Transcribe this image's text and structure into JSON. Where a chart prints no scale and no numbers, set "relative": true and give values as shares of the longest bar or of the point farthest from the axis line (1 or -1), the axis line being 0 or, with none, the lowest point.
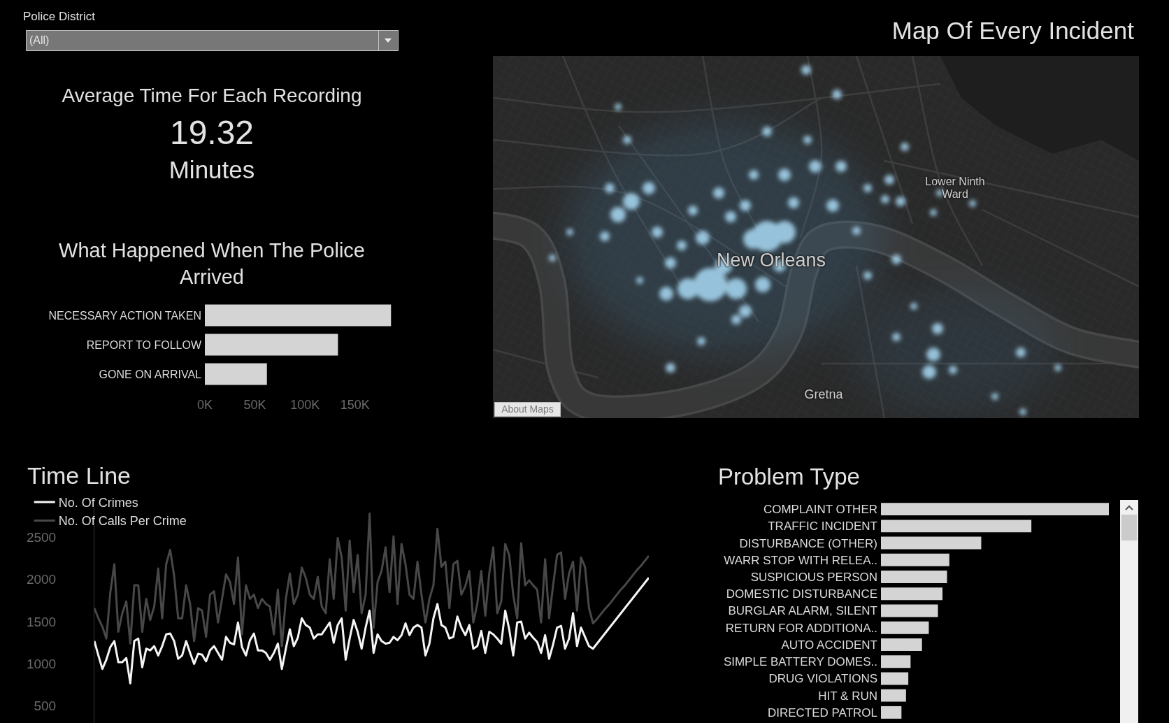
{
  "chart_data": [
    {
      "type": "other",
      "title": "Police District",
      "annotations": [
        "(All)"
      ]
    },
    {
      "type": "other",
      "title": "Average Time For Each Recording",
      "annotations": [
        "19.32",
        "Minutes"
      ]
    },
    {
      "type": "bar",
      "title": "What Happened When The Police Arrived",
      "orientation": "horizontal",
      "categories": [
        "NECESSARY ACTION TAKEN",
        "REPORT TO FOLLOW",
        "GONE ON ARRIVAL"
      ],
      "values": [
        186000,
        133000,
        62000
      ],
      "color": "#d4d4d4",
      "xlim": [
        0,
        190000
      ],
      "xticks": [
        {
          "value": 0,
          "label": "0K"
        },
        {
          "value": 50000,
          "label": "50K"
        },
        {
          "value": 100000,
          "label": "100K"
        },
        {
          "value": 150000,
          "label": "150K"
        }
      ]
    },
    {
      "type": "other",
      "title": "Map Of Every Incident",
      "annotations": [
        "New Orleans",
        "Lower Ninth Ward",
        "Gretna",
        "About Maps"
      ]
    },
    {
      "type": "line",
      "title": "Time Line",
      "categories": [
        null,
        null,
        null,
        null,
        null,
        null,
        null,
        null,
        null,
        null,
        null,
        null,
        null,
        null,
        null,
        null,
        null,
        null,
        null,
        null,
        null,
        null,
        null,
        null,
        null,
        null,
        null,
        null,
        null,
        null,
        null,
        null,
        null,
        null,
        null,
        null,
        null,
        null,
        null,
        null,
        null,
        null,
        null,
        null,
        null,
        null,
        null,
        null,
        null,
        null,
        null,
        null,
        null,
        null,
        null,
        null,
        null,
        null,
        null,
        null,
        null,
        null,
        null,
        null,
        null,
        null,
        null,
        null,
        null,
        null,
        null,
        null,
        null,
        null,
        null,
        null,
        null,
        null,
        null,
        null,
        null,
        null,
        null,
        null,
        null,
        null,
        null,
        null,
        null,
        null,
        null,
        null,
        null,
        null,
        null,
        null,
        null,
        null,
        null,
        null,
        null,
        null,
        null,
        null,
        null,
        null,
        null,
        null,
        null,
        null,
        null,
        null,
        null,
        null,
        null,
        null,
        null,
        null,
        null,
        null,
        null,
        null,
        null,
        null,
        null,
        null,
        null,
        null,
        null,
        null,
        null,
        null,
        null,
        null,
        null,
        null,
        null,
        null,
        null,
        null
      ],
      "series": [
        {
          "name": "No. Of Crimes",
          "color": "#f5f5f5",
          "values": [
            1270,
            1100,
            940,
            1050,
            1200,
            1270,
            1020,
            1020,
            1070,
            770,
            1270,
            1300,
            960,
            1180,
            1160,
            1210,
            1100,
            1210,
            1350,
            1360,
            1270,
            1060,
            1100,
            1270,
            1130,
            1000,
            1120,
            1110,
            1030,
            1160,
            1210,
            1130,
            1050,
            1320,
            1250,
            1230,
            1490,
            1200,
            1100,
            1280,
            1360,
            1160,
            1160,
            1130,
            1050,
            1130,
            1240,
            940,
            1180,
            1410,
            1210,
            1310,
            1540,
            1460,
            1430,
            1300,
            1350,
            1350,
            1420,
            1490,
            1250,
            1460,
            1540,
            1050,
            1300,
            1520,
            1380,
            1180,
            1430,
            1630,
            1130,
            1350,
            1270,
            1240,
            1250,
            1320,
            1280,
            1340,
            1480,
            1340,
            1430,
            1460,
            1430,
            1100,
            1240,
            1540,
            1710,
            1460,
            1430,
            1300,
            1320,
            1560,
            1430,
            1340,
            1460,
            1180,
            1210,
            1390,
            1130,
            1380,
            1350,
            1300,
            1240,
            1630,
            1410,
            1100,
            1490,
            1500,
            1300,
            1370,
            1310,
            1260,
            1130,
            1340,
            1060,
            1230,
            1430,
            1450,
            1180,
            1300,
            1600,
            1210,
            1430,
            1320,
            1210,
            1180,
            1240,
            1300,
            1360,
            1420,
            1480,
            1540,
            1600,
            1660,
            1720,
            1780,
            1840,
            1900,
            1960,
            2020
          ]
        },
        {
          "name": "No. Of Calls Per Crime",
          "color": "#484848",
          "values": [
            1660,
            1540,
            1440,
            1300,
            1850,
            2180,
            1380,
            1600,
            1740,
            1240,
            1930,
            1930,
            1380,
            1770,
            1520,
            1680,
            2130,
            1540,
            2180,
            2350,
            2040,
            1540,
            1540,
            1930,
            1710,
            1270,
            1660,
            1630,
            1320,
            1820,
            1860,
            1490,
            1770,
            2060,
            1970,
            1710,
            2260,
            1350,
            1930,
            1770,
            1820,
            1660,
            1770,
            1710,
            1680,
            1350,
            1880,
            1210,
            1770,
            2070,
            1710,
            1820,
            2140,
            2020,
            1820,
            1770,
            2030,
            1680,
            1600,
            2240,
            1770,
            2490,
            2260,
            1630,
            2460,
            1850,
            2290,
            1600,
            1820,
            2780,
            1430,
            1970,
            2100,
            2380,
            1850,
            2510,
            1710,
            2420,
            2180,
            1820,
            1770,
            2210,
            1820,
            1490,
            1770,
            1930,
            2600,
            2150,
            2210,
            1660,
            2180,
            2220,
            1820,
            1920,
            2100,
            1490,
            1710,
            2100,
            1570,
            2070,
            2380,
            1600,
            1740,
            2420,
            2290,
            1820,
            1540,
            2430,
            1930,
            1990,
            1930,
            1880,
            1490,
            2240,
            1540,
            1930,
            2290,
            2320,
            1770,
            2070,
            2210,
            1630,
            2260,
            2150,
            1660,
            1480,
            1530,
            1590,
            1650,
            1700,
            1760,
            1820,
            1880,
            1930,
            1990,
            2050,
            2110,
            2160,
            2220,
            2280
          ]
        }
      ],
      "ylim": [
        300,
        2850
      ],
      "yticks": [
        500,
        1000,
        1500,
        2000,
        2500
      ],
      "legend": "top left"
    },
    {
      "type": "bar",
      "title": "Problem Type",
      "orientation": "horizontal",
      "relative": true,
      "categories": [
        "COMPLAINT OTHER",
        "TRAFFIC INCIDENT",
        "DISTURBANCE (OTHER)",
        "WARR STOP WITH RELEA..",
        "SUSPICIOUS PERSON",
        "DOMESTIC DISTURBANCE",
        "BURGLAR ALARM, SILENT",
        "RETURN FOR ADDITIONA..",
        "AUTO ACCIDENT",
        "SIMPLE BATTERY DOMES..",
        "DRUG VIOLATIONS",
        "HIT & RUN",
        "DIRECTED PATROL"
      ],
      "values": [
        1,
        0.66,
        0.44,
        0.3,
        0.29,
        0.27,
        0.25,
        0.21,
        0.18,
        0.13,
        0.12,
        0.11,
        0.09
      ],
      "color": "#d4d4d4"
    }
  ]
}
